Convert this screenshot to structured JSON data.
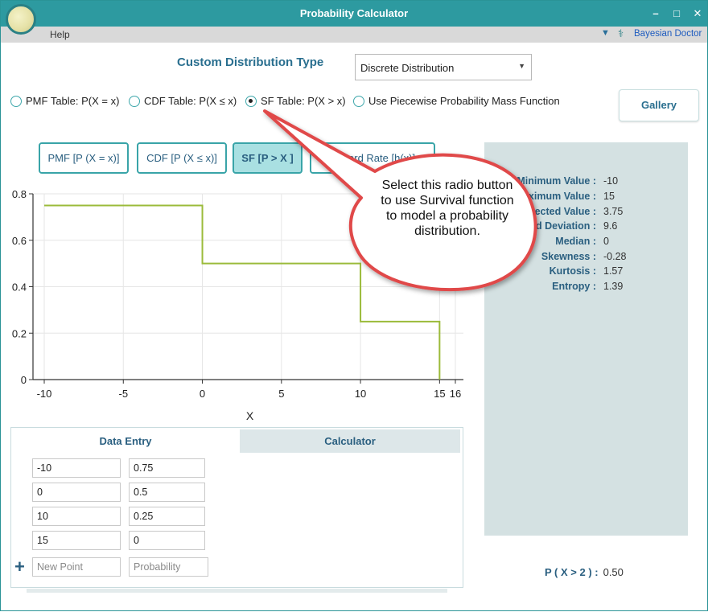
{
  "window": {
    "title": "Probability Calculator",
    "controls": {
      "minimize": "–",
      "maximize": "□",
      "close": "✕"
    }
  },
  "menu": {
    "help": "Help",
    "bayesian_doctor": "Bayesian Doctor",
    "chevron_icon": "chevron-down-icon",
    "stethoscope_icon": "stethoscope-icon"
  },
  "distribution": {
    "label": "Custom Distribution Type",
    "selected": "Discrete Distribution"
  },
  "radio_options": [
    {
      "label": "PMF Table: P(X = x)",
      "checked": false
    },
    {
      "label": "CDF Table: P(X ≤ x)",
      "checked": false
    },
    {
      "label": "SF Table: P(X > x)",
      "checked": true
    },
    {
      "label": "Use Piecewise Probability Mass Function",
      "checked": false
    }
  ],
  "gallery_label": "Gallery",
  "plot_tabs": [
    {
      "label": "PMF [P (X = x)]",
      "active": false
    },
    {
      "label": "CDF [P (X ≤ x)]",
      "active": false
    },
    {
      "label": "SF [P > X ]",
      "active": true
    },
    {
      "label": "Hazard Rate [h(x)]",
      "active": false
    }
  ],
  "chart_data": {
    "type": "line",
    "step": true,
    "x": [
      -10,
      0,
      10,
      15
    ],
    "y": [
      0.75,
      0.5,
      0.25,
      0
    ],
    "xlabel": "X",
    "ylabel": "",
    "xlim": [
      -10,
      16
    ],
    "ylim": [
      0,
      0.8
    ],
    "xticks": [
      "-10",
      "-5",
      "0",
      "5",
      "10",
      "15",
      "16"
    ],
    "yticks": [
      "0",
      "0.2",
      "0.4",
      "0.6",
      "0.8"
    ],
    "grid": true,
    "line_color": "#9bbb3a"
  },
  "stats": [
    {
      "label": "Minimum Value :",
      "value": "-10"
    },
    {
      "label": "Maximum Value :",
      "value": "15"
    },
    {
      "label": "Expected Value :",
      "value": "3.75"
    },
    {
      "label": "Standard Deviation :",
      "value": "9.6"
    },
    {
      "label": "Median :",
      "value": "0"
    },
    {
      "label": "Skewness :",
      "value": "-0.28"
    },
    {
      "label": "Kurtosis :",
      "value": "1.57"
    },
    {
      "label": "Entropy :",
      "value": "1.39"
    }
  ],
  "bottom_tabs": {
    "data_entry": "Data Entry",
    "calculator": "Calculator"
  },
  "data_rows": [
    {
      "x": "-10",
      "p": "0.75"
    },
    {
      "x": "0",
      "p": "0.5"
    },
    {
      "x": "10",
      "p": "0.25"
    },
    {
      "x": "15",
      "p": "0"
    }
  ],
  "new_point": {
    "x_placeholder": "New Point",
    "p_placeholder": "Probability",
    "add_icon": "plus-icon"
  },
  "probability": {
    "label": "P ( X > 2 ) :",
    "value": "0.50"
  },
  "callout": {
    "text": "Select this radio button to use Survival function to model a probability distribution."
  },
  "colors": {
    "accent": "#2d9aa0",
    "heading": "#2a6f8f",
    "stats_bg": "#d4e1e2",
    "callout_border": "#e0484a",
    "active_tab": "#a9e0e2"
  }
}
